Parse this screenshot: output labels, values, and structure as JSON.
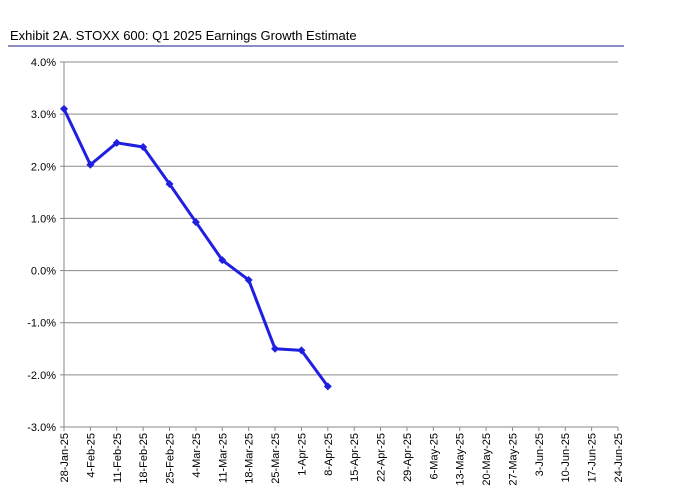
{
  "chart_data": {
    "type": "line",
    "title": "Exhibit 2A.  STOXX 600: Q1 2025 Earnings Growth Estimate",
    "categories": [
      "28-Jan-25",
      "4-Feb-25",
      "11-Feb-25",
      "18-Feb-25",
      "25-Feb-25",
      "4-Mar-25",
      "11-Mar-25",
      "18-Mar-25",
      "25-Mar-25",
      "1-Apr-25",
      "8-Apr-25",
      "15-Apr-25",
      "22-Apr-25",
      "29-Apr-25",
      "6-May-25",
      "13-May-25",
      "20-May-25",
      "27-May-25",
      "3-Jun-25",
      "10-Jun-25",
      "17-Jun-25",
      "24-Jun-25"
    ],
    "series": [
      {
        "name": "STOXX 600",
        "color": "#1f1fe0",
        "values": [
          3.1,
          2.03,
          2.45,
          2.37,
          1.66,
          0.93,
          0.2,
          -0.18,
          -1.5,
          -1.53,
          -2.22,
          null,
          null,
          null,
          null,
          null,
          null,
          null,
          null,
          null,
          null,
          null
        ]
      }
    ],
    "ylim": [
      -3,
      4
    ],
    "yticks": [
      {
        "value": -3,
        "label": "-3.0%"
      },
      {
        "value": -2,
        "label": "-2.0%"
      },
      {
        "value": -1,
        "label": "-1.0%"
      },
      {
        "value": 0,
        "label": "0.0%"
      },
      {
        "value": 1,
        "label": "1.0%"
      },
      {
        "value": 2,
        "label": "2.0%"
      },
      {
        "value": 3,
        "label": "3.0%"
      },
      {
        "value": 4,
        "label": "4.0%"
      }
    ],
    "grid": true
  }
}
